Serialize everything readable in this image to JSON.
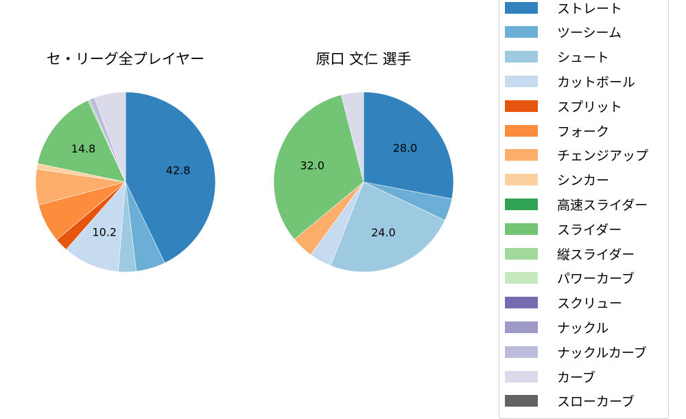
{
  "chart_data": [
    {
      "type": "pie",
      "title": "セ・リーグ全プレイヤー",
      "start_angle": 90,
      "direction": "clockwise",
      "categories": [
        "ストレート",
        "ツーシーム",
        "シュート",
        "カットボール",
        "スプリット",
        "フォーク",
        "チェンジアップ",
        "シンカー",
        "スライダー",
        "縦スライダー",
        "ナックルカーブ",
        "カーブ"
      ],
      "values": [
        42.8,
        5.3,
        3.2,
        10.2,
        2.4,
        7.0,
        6.4,
        1.0,
        14.8,
        0.3,
        1.0,
        5.6
      ],
      "labeled_values": {
        "ストレート": "42.8",
        "カットボール": "10.2",
        "スライダー": "14.8"
      }
    },
    {
      "type": "pie",
      "title": "原口 文仁  選手",
      "start_angle": 90,
      "direction": "clockwise",
      "categories": [
        "ストレート",
        "ツーシーム",
        "シュート",
        "カットボール",
        "チェンジアップ",
        "スライダー",
        "カーブ"
      ],
      "values": [
        28.0,
        4.0,
        24.0,
        4.0,
        4.0,
        32.0,
        4.0
      ],
      "labeled_values": {
        "ストレート": "28.0",
        "シュート": "24.0",
        "スライダー": "32.0"
      }
    }
  ],
  "titles": {
    "left": "セ・リーグ全プレイヤー",
    "right": "原口 文仁  選手"
  },
  "colors": {
    "ストレート": "#3182bd",
    "ツーシーム": "#6baed6",
    "シュート": "#9ecae1",
    "カットボール": "#c6dbef",
    "スプリット": "#e6550d",
    "フォーク": "#fd8d3c",
    "チェンジアップ": "#fdae6b",
    "シンカー": "#fdd0a2",
    "高速スライダー": "#31a354",
    "スライダー": "#74c476",
    "縦スライダー": "#a1d99b",
    "パワーカーブ": "#c7e9c0",
    "スクリュー": "#756bb1",
    "ナックル": "#9e9ac8",
    "ナックルカーブ": "#bcbddc",
    "カーブ": "#dadaeb",
    "スローカーブ": "#636363"
  },
  "legend": {
    "items": [
      "ストレート",
      "ツーシーム",
      "シュート",
      "カットボール",
      "スプリット",
      "フォーク",
      "チェンジアップ",
      "シンカー",
      "高速スライダー",
      "スライダー",
      "縦スライダー",
      "パワーカーブ",
      "スクリュー",
      "ナックル",
      "ナックルカーブ",
      "カーブ",
      "スローカーブ"
    ]
  }
}
